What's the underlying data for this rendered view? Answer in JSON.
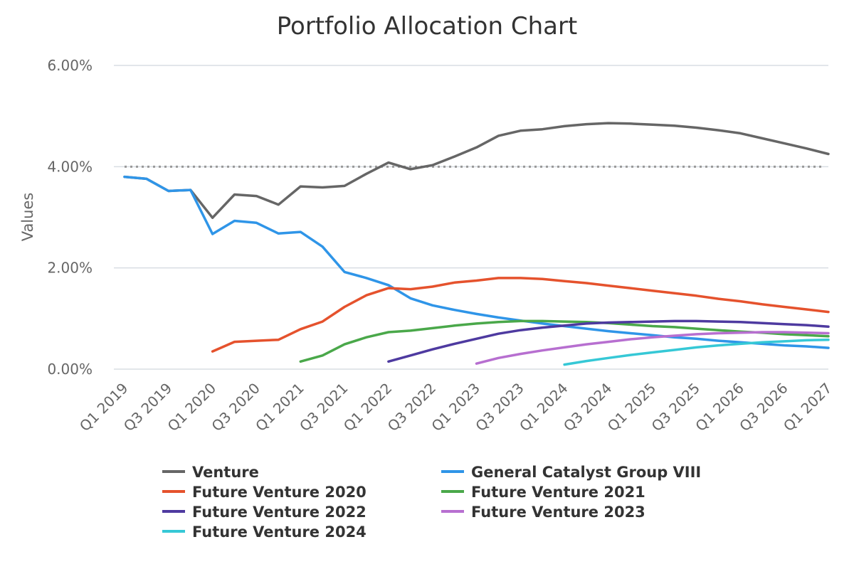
{
  "chart_data": {
    "type": "line",
    "title": "Portfolio Allocation Chart",
    "xlabel": "",
    "ylabel": "Values",
    "ylim": [
      0,
      6
    ],
    "y_ticks": [
      "0.00%",
      "2.00%",
      "4.00%",
      "6.00%"
    ],
    "x_tick_labels": [
      "Q1 2019",
      "Q3 2019",
      "Q1 2020",
      "Q3 2020",
      "Q1 2021",
      "Q3 2021",
      "Q1 2022",
      "Q3 2022",
      "Q1 2023",
      "Q3 2023",
      "Q1 2024",
      "Q3 2024",
      "Q1 2025",
      "Q3 2025",
      "Q1 2026",
      "Q3 2026",
      "Q1 2027"
    ],
    "categories": [
      "Q1 2019",
      "Q2 2019",
      "Q3 2019",
      "Q4 2019",
      "Q1 2020",
      "Q2 2020",
      "Q3 2020",
      "Q4 2020",
      "Q1 2021",
      "Q2 2021",
      "Q3 2021",
      "Q4 2021",
      "Q1 2022",
      "Q2 2022",
      "Q3 2022",
      "Q4 2022",
      "Q1 2023",
      "Q2 2023",
      "Q3 2023",
      "Q4 2023",
      "Q1 2024",
      "Q2 2024",
      "Q3 2024",
      "Q4 2024",
      "Q1 2025",
      "Q2 2025",
      "Q3 2025",
      "Q4 2025",
      "Q1 2026",
      "Q2 2026",
      "Q3 2026",
      "Q4 2026",
      "Q1 2027"
    ],
    "reference_line": {
      "value": 4.0,
      "style": "dotted",
      "color": "#999999"
    },
    "grid": true,
    "legend_position": "bottom",
    "series": [
      {
        "name": "Venture",
        "color": "#666666",
        "values": [
          3.8,
          3.76,
          3.52,
          3.54,
          2.99,
          3.45,
          3.42,
          3.25,
          3.61,
          3.59,
          3.62,
          3.86,
          4.08,
          3.95,
          4.03,
          4.2,
          4.38,
          4.61,
          4.71,
          4.74,
          4.8,
          4.84,
          4.86,
          4.85,
          4.83,
          4.81,
          4.77,
          4.72,
          4.66,
          4.56,
          4.46,
          4.36,
          4.25
        ]
      },
      {
        "name": "General Catalyst Group VIII",
        "color": "#2f95e8",
        "values": [
          3.8,
          3.76,
          3.52,
          3.54,
          2.67,
          2.93,
          2.89,
          2.68,
          2.71,
          2.42,
          1.92,
          1.8,
          1.66,
          1.4,
          1.26,
          1.17,
          1.09,
          1.02,
          0.96,
          0.9,
          0.85,
          0.8,
          0.75,
          0.71,
          0.67,
          0.63,
          0.6,
          0.56,
          0.53,
          0.5,
          0.47,
          0.45,
          0.42
        ]
      },
      {
        "name": "Future Venture 2020",
        "color": "#e5522d",
        "values": [
          null,
          null,
          null,
          null,
          0.35,
          0.54,
          0.56,
          0.58,
          0.79,
          0.94,
          1.23,
          1.46,
          1.6,
          1.58,
          1.63,
          1.71,
          1.75,
          1.8,
          1.8,
          1.78,
          1.74,
          1.7,
          1.65,
          1.6,
          1.55,
          1.5,
          1.45,
          1.39,
          1.34,
          1.28,
          1.23,
          1.18,
          1.13
        ]
      },
      {
        "name": "Future Venture 2021",
        "color": "#4aa84a",
        "values": [
          null,
          null,
          null,
          null,
          null,
          null,
          null,
          null,
          0.15,
          0.27,
          0.49,
          0.63,
          0.73,
          0.76,
          0.81,
          0.86,
          0.9,
          0.93,
          0.95,
          0.95,
          0.94,
          0.93,
          0.91,
          0.88,
          0.85,
          0.83,
          0.8,
          0.77,
          0.74,
          0.72,
          0.69,
          0.67,
          0.65
        ]
      },
      {
        "name": "Future Venture 2022",
        "color": "#4e3aa0",
        "values": [
          null,
          null,
          null,
          null,
          null,
          null,
          null,
          null,
          null,
          null,
          null,
          null,
          0.15,
          0.27,
          0.39,
          0.5,
          0.6,
          0.7,
          0.77,
          0.82,
          0.86,
          0.9,
          0.92,
          0.93,
          0.94,
          0.95,
          0.95,
          0.94,
          0.93,
          0.91,
          0.89,
          0.87,
          0.84
        ]
      },
      {
        "name": "Future Venture 2023",
        "color": "#b76fd0",
        "values": [
          null,
          null,
          null,
          null,
          null,
          null,
          null,
          null,
          null,
          null,
          null,
          null,
          null,
          null,
          null,
          null,
          0.11,
          0.22,
          0.3,
          0.37,
          0.43,
          0.49,
          0.54,
          0.59,
          0.63,
          0.66,
          0.69,
          0.71,
          0.72,
          0.73,
          0.73,
          0.72,
          0.71
        ]
      },
      {
        "name": "Future Venture 2024",
        "color": "#36c8d6",
        "values": [
          null,
          null,
          null,
          null,
          null,
          null,
          null,
          null,
          null,
          null,
          null,
          null,
          null,
          null,
          null,
          null,
          null,
          null,
          null,
          null,
          0.09,
          0.16,
          0.22,
          0.28,
          0.33,
          0.38,
          0.43,
          0.47,
          0.5,
          0.53,
          0.55,
          0.57,
          0.58
        ]
      }
    ]
  }
}
